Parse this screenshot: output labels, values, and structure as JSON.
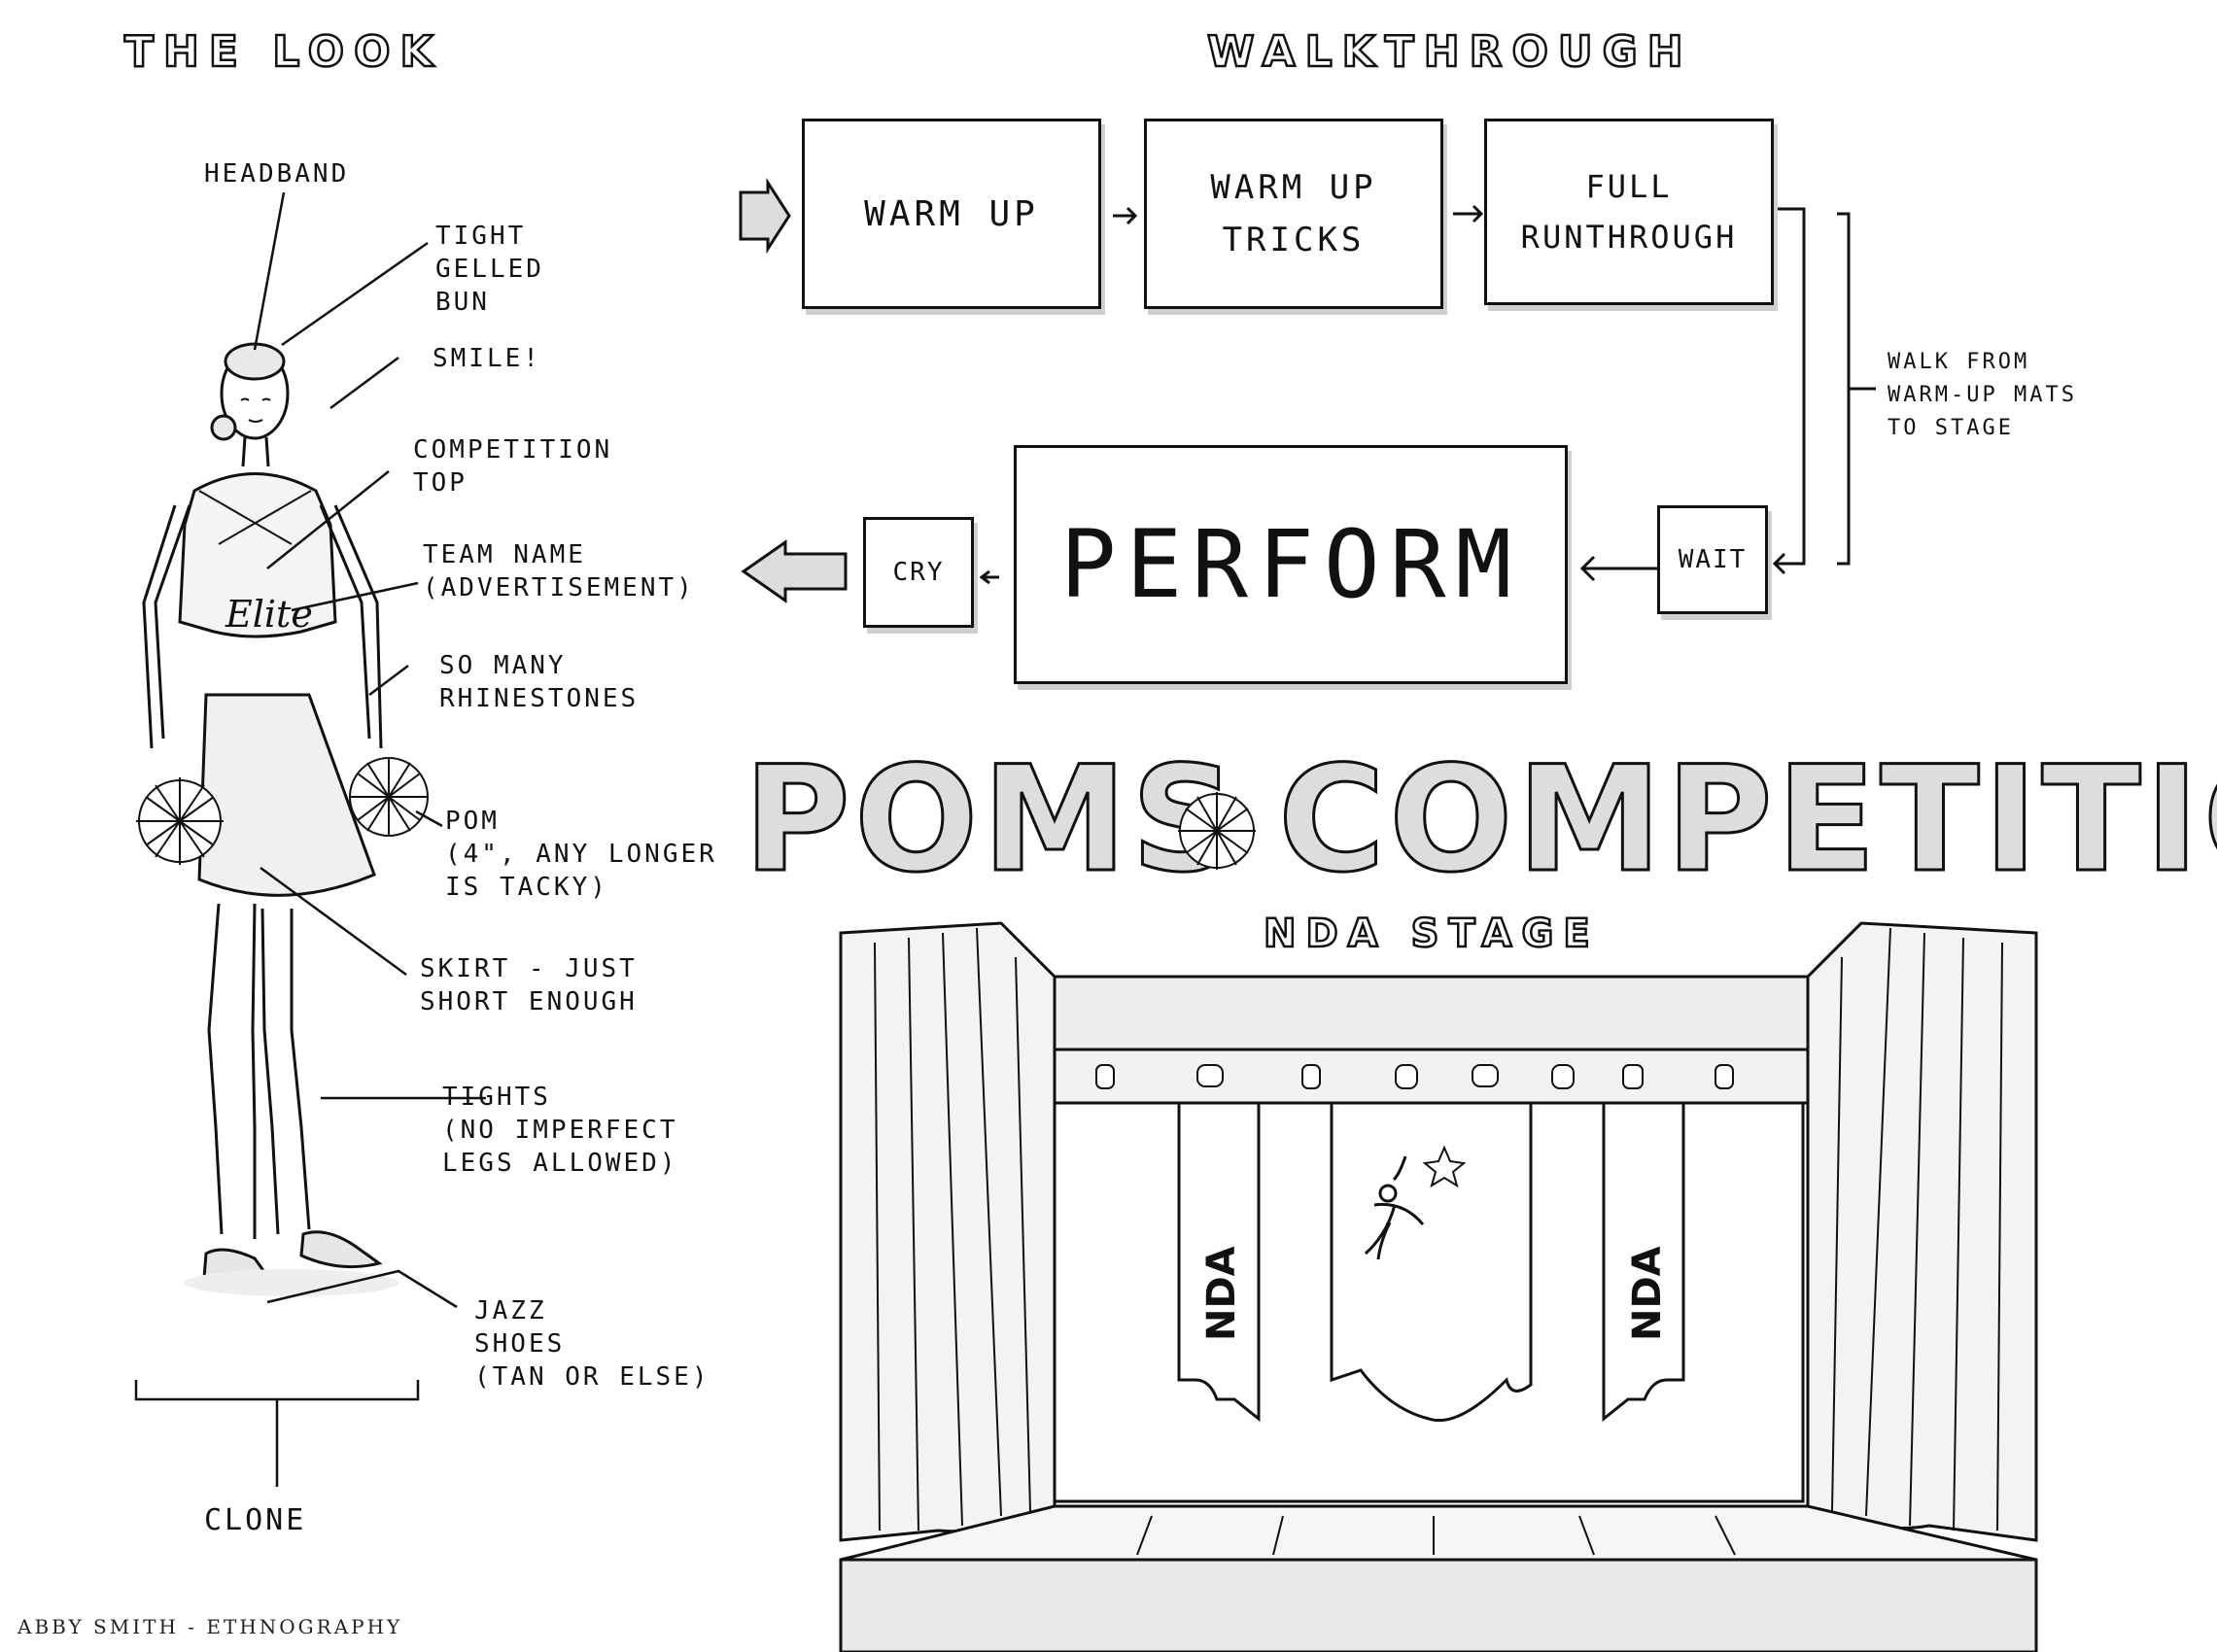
{
  "headings": {
    "look": "THE LOOK",
    "walkthrough": "WALKTHROUGH"
  },
  "look_labels": {
    "headband": "HEADBAND",
    "bun": "TIGHT\nGELLED\nBUN",
    "smile": "SMILE!",
    "top": "COMPETITION\nTOP",
    "team_name": "TEAM NAME\n(ADVERTISEMENT)",
    "rhinestones": "SO MANY\nRHINESTONES",
    "pom": "POM\n(4\", ANY LONGER\nIS TACKY)",
    "skirt": "SKIRT - JUST\nSHORT ENOUGH",
    "tights": "TIGHTS\n(NO IMPERFECT\nLEGS ALLOWED)",
    "shoes": "JAZZ\nSHOES\n(TAN OR ELSE)",
    "clone": "CLONE",
    "uniform_script": "Elite"
  },
  "walkthrough": {
    "steps": [
      "WARM UP",
      "WARM UP\nTRICKS",
      "FULL\nRUNTHROUGH",
      "WAIT",
      "PERFORM",
      "CRY"
    ],
    "walk_note": "WALK FROM\nWARM-UP MATS\nTO STAGE"
  },
  "poster": {
    "word1": "POMS",
    "word2": "COMPETITION",
    "stage_sign": "NDA STAGE",
    "banner_left": "NDA",
    "banner_right": "NDA"
  },
  "credit": "ABBY SMITH - ETHNOGRAPHY",
  "colors": {
    "ink": "#111111",
    "fill": "#dddddd",
    "shadow": "#cfcfcf"
  }
}
